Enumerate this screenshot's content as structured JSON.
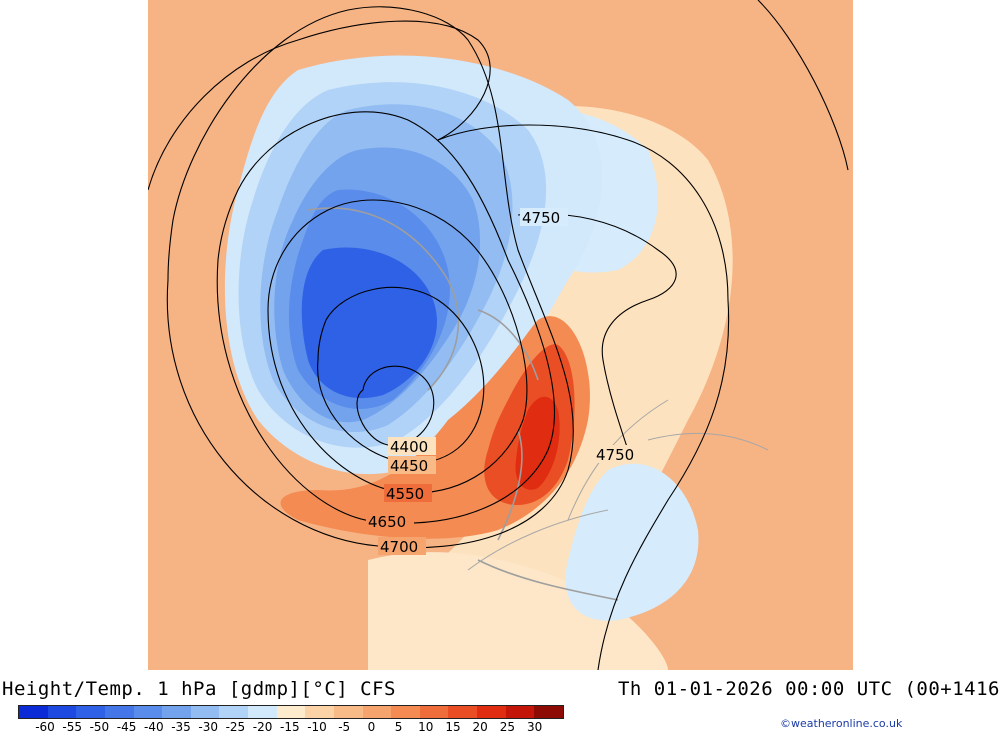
{
  "title": {
    "left": "Height/Temp. 1 hPa [gdmp][°C] CFS",
    "right": "Th 01-01-2026 00:00 UTC (00+1416"
  },
  "colorbar": {
    "labels": [
      "-60",
      "-55",
      "-50",
      "-45",
      "-40",
      "-35",
      "-30",
      "-25",
      "-20",
      "-15",
      "-10",
      "-5",
      "0",
      "5",
      "10",
      "15",
      "20",
      "25",
      "30"
    ],
    "colors": [
      "#0b2bd6",
      "#1d49e0",
      "#2f61e6",
      "#4476e8",
      "#5a8ceb",
      "#74a3ee",
      "#92bcf2",
      "#b1d3f7",
      "#d2e8fb",
      "#fcebcc",
      "#fbd3a6",
      "#f8bb88",
      "#f6a46e",
      "#f38b53",
      "#ef6d3b",
      "#ea4e25",
      "#e02c10",
      "#c41608",
      "#8e0a04"
    ]
  },
  "contours": {
    "labels": [
      "4400",
      "4450",
      "4550",
      "4650",
      "4700",
      "4750",
      "4750"
    ]
  },
  "credit": "©weatheronline.co.uk"
}
